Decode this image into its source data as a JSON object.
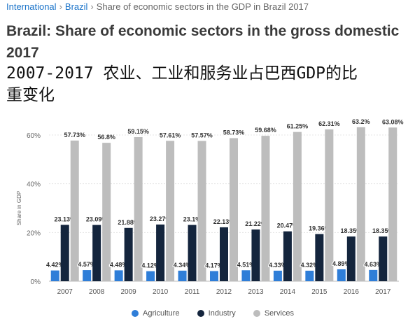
{
  "breadcrumb": {
    "items": [
      "International",
      "Brazil",
      "Share of economic sectors in the GDP in Brazil 2017"
    ]
  },
  "title": {
    "line1": "Brazil: Share of economic sectors in the gross domestic",
    "line2": "2017"
  },
  "overlay_text": {
    "line1": "2007-2017 农业、工业和服务业占巴西GDP的比",
    "line2": "重变化"
  },
  "colors": {
    "agriculture": "#2f7ed8",
    "industry": "#14253d",
    "services": "#bdbdbd",
    "link": "#1a73c9"
  },
  "chart_data": {
    "type": "bar",
    "categories": [
      "2007",
      "2008",
      "2009",
      "2010",
      "2011",
      "2012",
      "2013",
      "2014",
      "2015",
      "2016",
      "2017"
    ],
    "ylabel": "Share in GDP",
    "ylim": [
      0,
      60
    ],
    "yticks": [
      {
        "value": 0,
        "label": "0%"
      },
      {
        "value": 20,
        "label": "20%"
      },
      {
        "value": 40,
        "label": "40%"
      },
      {
        "value": 60,
        "label": "60%"
      }
    ],
    "grid": true,
    "legend_position": "bottom",
    "series": [
      {
        "name": "Agriculture",
        "values": [
          4.42,
          4.57,
          4.48,
          4.12,
          4.34,
          4.17,
          4.51,
          4.33,
          4.32,
          4.89,
          4.63
        ],
        "labels": [
          "4.42%",
          "4.57%",
          "4.48%",
          "4.12%",
          "4.34%",
          "4.17%",
          "4.51%",
          "4.33%",
          "4.32%",
          "4.89%",
          "4.63%"
        ]
      },
      {
        "name": "Industry",
        "values": [
          23.13,
          23.09,
          21.88,
          23.27,
          23.1,
          22.13,
          21.22,
          20.47,
          19.36,
          18.35,
          18.35
        ],
        "labels": [
          "23.13%",
          "23.09%",
          "21.88%",
          "23.27%",
          "23.1%",
          "22.13%",
          "21.22%",
          "20.47%",
          "19.36%",
          "18.35%",
          "18.35%"
        ]
      },
      {
        "name": "Services",
        "values": [
          57.73,
          56.8,
          59.15,
          57.61,
          57.57,
          58.73,
          59.68,
          61.25,
          62.31,
          63.2,
          63.08
        ],
        "labels": [
          "57.73%",
          "56.8%",
          "59.15%",
          "57.61%",
          "57.57%",
          "58.73%",
          "59.68%",
          "61.25%",
          "62.31%",
          "63.2%",
          "63.08%"
        ]
      }
    ]
  }
}
